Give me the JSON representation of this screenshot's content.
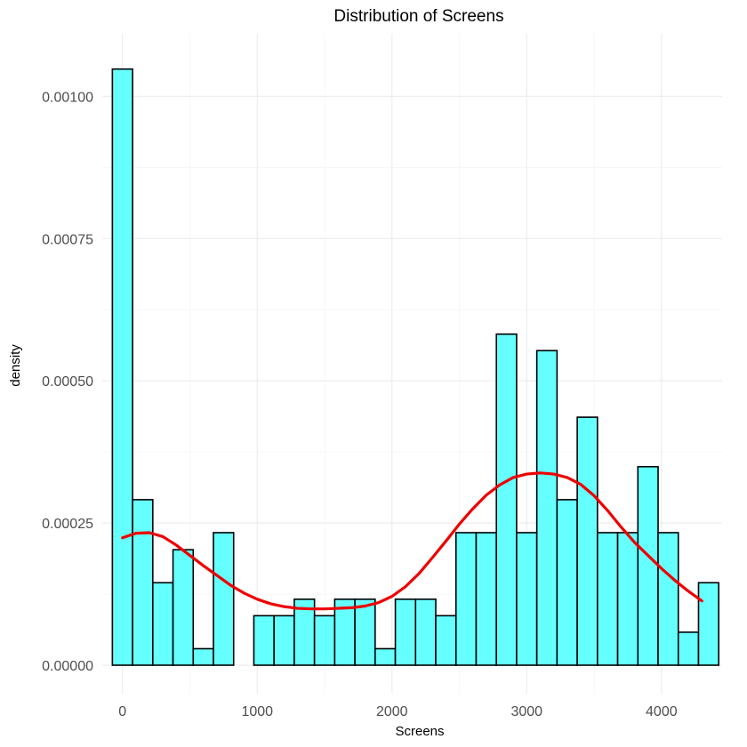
{
  "chart_data": {
    "type": "bar",
    "title": "Distribution of Screens",
    "xlabel": "Screens",
    "ylabel": "density",
    "xlim": [
      -150,
      4450
    ],
    "ylim": [
      -5e-05,
      0.00111
    ],
    "x_ticks": [
      0,
      1000,
      2000,
      3000,
      4000
    ],
    "x_tick_labels": [
      "0",
      "1000",
      "2000",
      "3000",
      "4000"
    ],
    "y_ticks": [
      0,
      0.00025,
      0.0005,
      0.00075,
      0.001
    ],
    "y_tick_labels": [
      "0.00000",
      "0.00025",
      "0.00050",
      "0.00075",
      "0.00100"
    ],
    "grid": true,
    "bin_width": 150,
    "bin_starts": [
      -75,
      75,
      225,
      375,
      525,
      675,
      825,
      975,
      1125,
      1275,
      1425,
      1575,
      1725,
      1875,
      2025,
      2175,
      2325,
      2475,
      2625,
      2775,
      2925,
      3075,
      3225,
      3375,
      3525,
      3675,
      3825,
      3975,
      4125,
      4275
    ],
    "values": [
      0.001048,
      0.000291,
      0.000145,
      0.000203,
      2.9e-05,
      0.000233,
      0.0,
      8.7e-05,
      8.7e-05,
      0.000116,
      8.7e-05,
      0.000116,
      0.000116,
      2.9e-05,
      0.000116,
      0.000116,
      8.7e-05,
      0.000233,
      0.000233,
      0.000582,
      0.000233,
      0.000553,
      0.000291,
      0.000436,
      0.000233,
      0.000233,
      0.000349,
      0.000233,
      5.8e-05,
      0.000145
    ],
    "bar_fill": "#66FFFF",
    "bar_outline": "#000000",
    "density_curve": {
      "color": "#EE0000",
      "x": [
        0,
        100,
        200,
        300,
        400,
        500,
        600,
        700,
        800,
        900,
        1000,
        1100,
        1200,
        1300,
        1400,
        1500,
        1600,
        1700,
        1800,
        1900,
        2000,
        2100,
        2200,
        2300,
        2400,
        2500,
        2600,
        2700,
        2800,
        2900,
        3000,
        3100,
        3200,
        3300,
        3400,
        3500,
        3600,
        3700,
        3800,
        3900,
        4000,
        4100,
        4200,
        4300
      ],
      "y": [
        0.000224,
        0.000232,
        0.000233,
        0.000226,
        0.000211,
        0.000193,
        0.000175,
        0.000158,
        0.000141,
        0.000127,
        0.000116,
        0.000108,
        0.000103,
        0.0001,
        9.9e-05,
        9.9e-05,
        0.0001,
        0.000101,
        0.000104,
        0.00011,
        0.000121,
        0.000138,
        0.000161,
        0.000189,
        0.000218,
        0.000248,
        0.000275,
        0.000299,
        0.000317,
        0.00033,
        0.000336,
        0.000338,
        0.000336,
        0.00033,
        0.000318,
        0.000298,
        0.000272,
        0.000243,
        0.000216,
        0.000193,
        0.00017,
        0.000149,
        0.00013,
        0.000113
      ]
    }
  }
}
